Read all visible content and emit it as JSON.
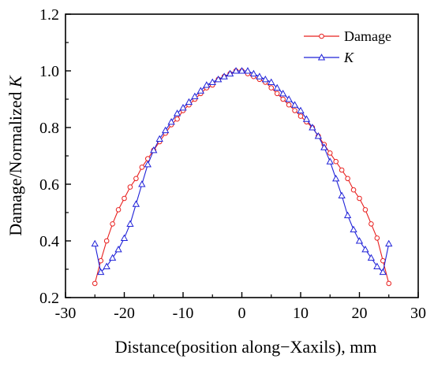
{
  "chart_data": {
    "type": "line",
    "title": "",
    "xlabel": "Distance(position along−Xaxils), mm",
    "ylabel": "Damage/Normalized K",
    "ylabel_prefix": "Damage/Normalized ",
    "ylabel_italic": "K",
    "xlim": [
      -30,
      30
    ],
    "ylim": [
      0.2,
      1.2
    ],
    "xticks": [
      -30,
      -20,
      -10,
      0,
      10,
      20,
      30
    ],
    "xtick_labels": [
      "-30",
      "-20",
      "-10",
      "0",
      "10",
      "20",
      "30"
    ],
    "yticks": [
      0.2,
      0.4,
      0.6,
      0.8,
      1.0,
      1.2
    ],
    "ytick_labels": [
      "0.2",
      "0.4",
      "0.6",
      "0.8",
      "1.0",
      "1.2"
    ],
    "grid": false,
    "legend": "top-right",
    "series": [
      {
        "name": "Damage",
        "color": "#e8201f",
        "marker": "circle",
        "x": [
          -25,
          -24,
          -23,
          -22,
          -21,
          -20,
          -19,
          -18,
          -17,
          -16,
          -15,
          -14,
          -13,
          -12,
          -11,
          -10,
          -9,
          -8,
          -7,
          -6,
          -5,
          -4,
          -3,
          -2,
          -1,
          0,
          1,
          2,
          3,
          4,
          5,
          6,
          7,
          8,
          9,
          10,
          11,
          12,
          13,
          14,
          15,
          16,
          17,
          18,
          19,
          20,
          21,
          22,
          23,
          24,
          25
        ],
        "y": [
          0.25,
          0.33,
          0.4,
          0.46,
          0.51,
          0.55,
          0.59,
          0.62,
          0.66,
          0.69,
          0.72,
          0.75,
          0.78,
          0.81,
          0.83,
          0.86,
          0.88,
          0.9,
          0.92,
          0.94,
          0.95,
          0.97,
          0.98,
          0.99,
          1.0,
          1.0,
          0.99,
          0.98,
          0.97,
          0.96,
          0.94,
          0.92,
          0.9,
          0.88,
          0.86,
          0.84,
          0.82,
          0.8,
          0.77,
          0.74,
          0.71,
          0.68,
          0.65,
          0.62,
          0.58,
          0.55,
          0.51,
          0.46,
          0.41,
          0.33,
          0.25
        ]
      },
      {
        "name": "K",
        "color": "#1f21d8",
        "marker": "triangle",
        "x": [
          -25,
          -24,
          -23,
          -22,
          -21,
          -20,
          -19,
          -18,
          -17,
          -16,
          -15,
          -14,
          -13,
          -12,
          -11,
          -10,
          -9,
          -8,
          -7,
          -6,
          -5,
          -4,
          -3,
          -2,
          -1,
          0,
          1,
          2,
          3,
          4,
          5,
          6,
          7,
          8,
          9,
          10,
          11,
          12,
          13,
          14,
          15,
          16,
          17,
          18,
          19,
          20,
          21,
          22,
          23,
          24,
          25
        ],
        "y": [
          0.39,
          0.29,
          0.31,
          0.34,
          0.37,
          0.41,
          0.46,
          0.53,
          0.6,
          0.67,
          0.72,
          0.76,
          0.79,
          0.82,
          0.85,
          0.87,
          0.89,
          0.91,
          0.93,
          0.95,
          0.96,
          0.97,
          0.98,
          0.99,
          1.0,
          1.0,
          1.0,
          0.99,
          0.98,
          0.97,
          0.96,
          0.94,
          0.92,
          0.9,
          0.88,
          0.86,
          0.83,
          0.8,
          0.77,
          0.73,
          0.68,
          0.62,
          0.56,
          0.49,
          0.44,
          0.4,
          0.37,
          0.34,
          0.31,
          0.29,
          0.39
        ]
      }
    ]
  }
}
